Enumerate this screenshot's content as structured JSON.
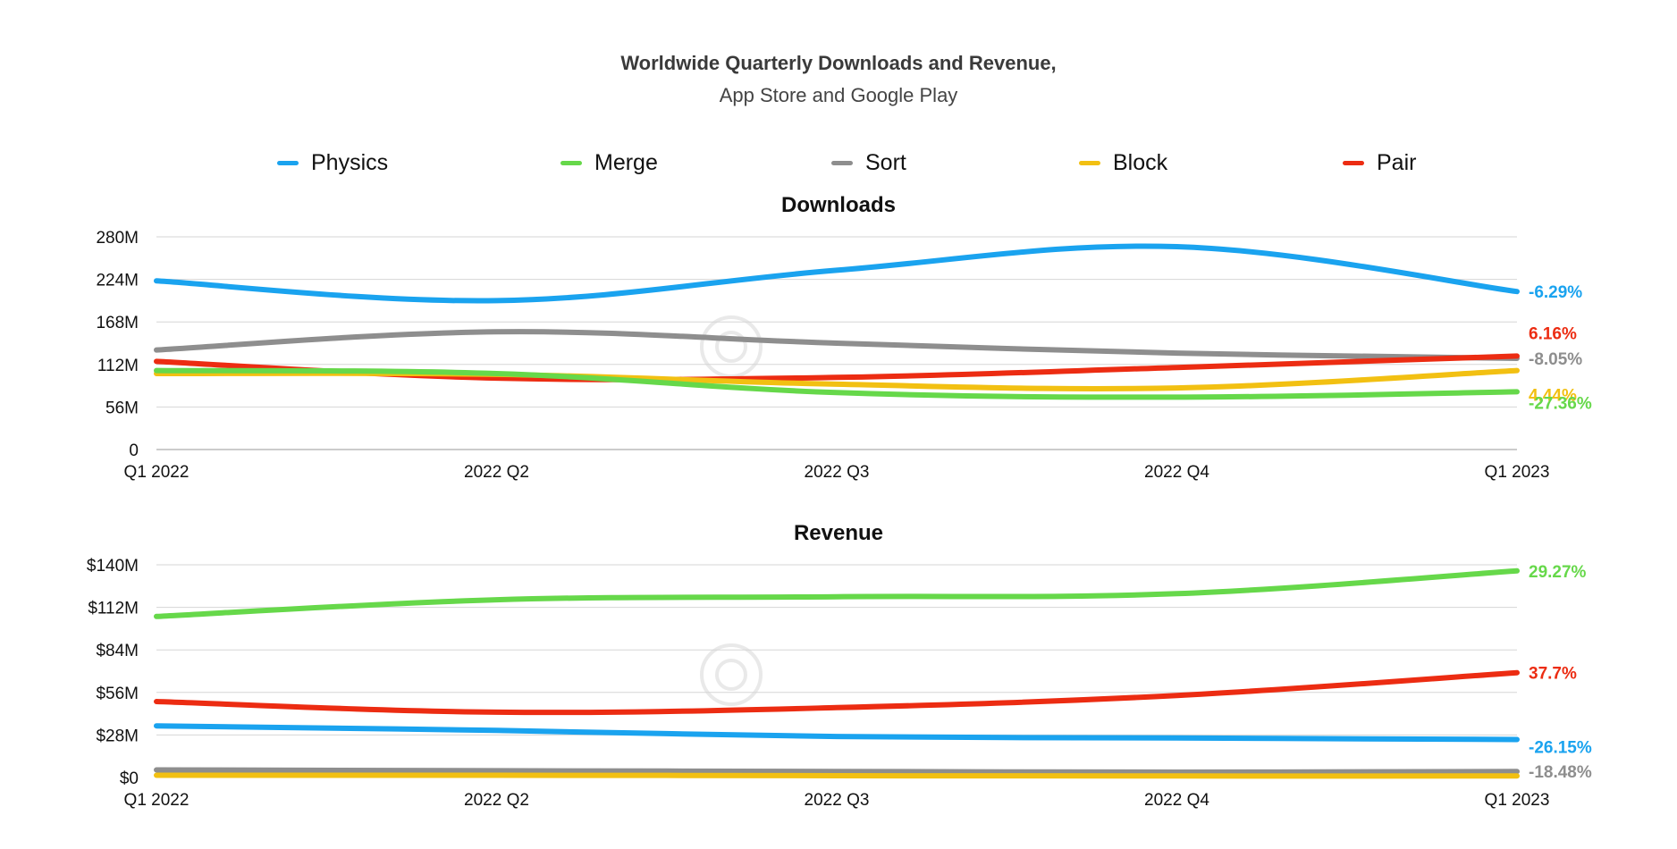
{
  "title": "Worldwide Quarterly Downloads and Revenue,",
  "subtitle": "App Store and Google Play",
  "legend": [
    {
      "name": "Physics",
      "color": "#1aa3ef"
    },
    {
      "name": "Merge",
      "color": "#66d84a"
    },
    {
      "name": "Sort",
      "color": "#8e8e8e"
    },
    {
      "name": "Block",
      "color": "#f2c012"
    },
    {
      "name": "Pair",
      "color": "#ec2c12"
    }
  ],
  "chart_data": [
    {
      "type": "line",
      "title": "Downloads",
      "categories": [
        "Q1 2022",
        "2022 Q2",
        "2022 Q3",
        "2022 Q4",
        "Q1 2023"
      ],
      "yticks": [
        "0",
        "56M",
        "112M",
        "168M",
        "224M",
        "280M"
      ],
      "ylim": [
        0,
        280
      ],
      "unit": "M",
      "grid": true,
      "series": [
        {
          "name": "Physics",
          "color": "#1aa3ef",
          "values": [
            222,
            196,
            236,
            267,
            208
          ],
          "change": "-6.29%"
        },
        {
          "name": "Sort",
          "color": "#8e8e8e",
          "values": [
            131,
            155,
            140,
            127,
            120
          ],
          "change": "-8.05%"
        },
        {
          "name": "Pair",
          "color": "#ec2c12",
          "values": [
            116,
            94,
            95,
            108,
            123
          ],
          "change": "6.16%"
        },
        {
          "name": "Block",
          "color": "#f2c012",
          "values": [
            100,
            99,
            86,
            81,
            104
          ],
          "change": "4.44%"
        },
        {
          "name": "Merge",
          "color": "#66d84a",
          "values": [
            104,
            100,
            75,
            69,
            76
          ],
          "change": "-27.36%"
        }
      ]
    },
    {
      "type": "line",
      "title": "Revenue",
      "categories": [
        "Q1 2022",
        "2022 Q2",
        "2022 Q3",
        "2022 Q4",
        "Q1 2023"
      ],
      "yticks": [
        "$0",
        "$28M",
        "$56M",
        "$84M",
        "$112M",
        "$140M"
      ],
      "ylim": [
        0,
        140
      ],
      "unit": "$M",
      "grid": true,
      "series": [
        {
          "name": "Merge",
          "color": "#66d84a",
          "values": [
            106,
            117,
            119,
            121,
            136
          ],
          "change": "29.27%"
        },
        {
          "name": "Pair",
          "color": "#ec2c12",
          "values": [
            50,
            43,
            46,
            54,
            69
          ],
          "change": "37.7%"
        },
        {
          "name": "Physics",
          "color": "#1aa3ef",
          "values": [
            34,
            31,
            27,
            26,
            25
          ],
          "change": "-26.15%"
        },
        {
          "name": "Sort",
          "color": "#8e8e8e",
          "values": [
            5,
            4.5,
            4,
            3.5,
            4
          ],
          "change": "-18.48%"
        },
        {
          "name": "Block",
          "color": "#f2c012",
          "values": [
            1.5,
            1.5,
            1.2,
            1,
            1
          ]
        }
      ]
    }
  ]
}
